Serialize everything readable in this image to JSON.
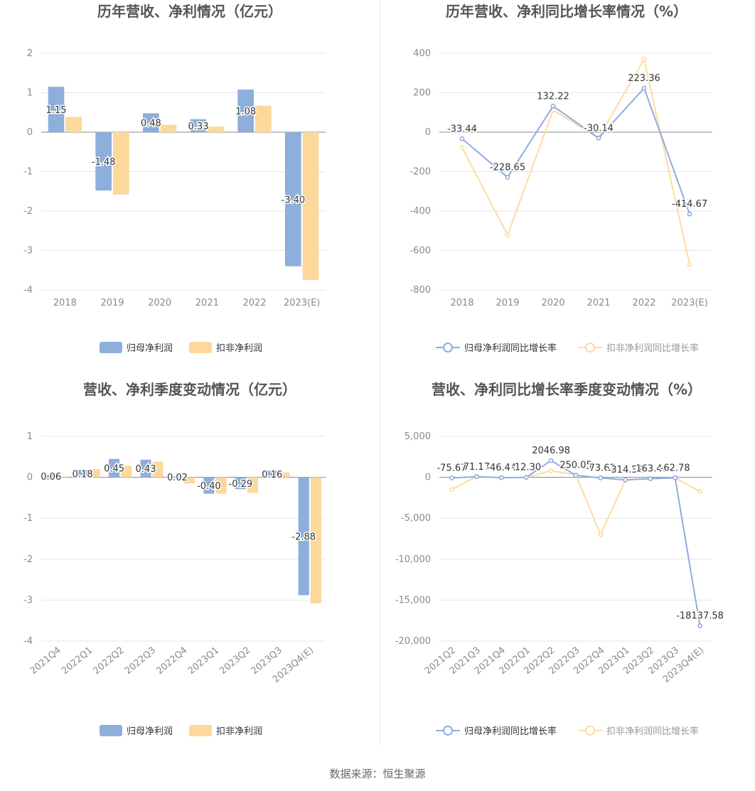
{
  "footer": {
    "source": "数据来源：恒生聚源"
  },
  "colors": {
    "blue": "#8eaedc",
    "orange": "#fdd89b",
    "blue_line": "#8eaedc",
    "orange_line": "#fddca0",
    "grid": "#e6e6e6",
    "axis": "#999999"
  },
  "chart_data": [
    {
      "type": "bar",
      "title": "历年营收、净利情况（亿元）",
      "categories": [
        "2018",
        "2019",
        "2020",
        "2021",
        "2022",
        "2023(E)"
      ],
      "series": [
        {
          "name": "归母净利润",
          "values": [
            1.15,
            -1.48,
            0.48,
            0.33,
            1.08,
            -3.4
          ],
          "labels": [
            "1.15",
            "-1.48",
            "0.48",
            "0.33",
            "1.08",
            "-3.40"
          ]
        },
        {
          "name": "扣非净利润",
          "values": [
            0.39,
            -1.58,
            0.19,
            0.14,
            0.67,
            -3.75
          ]
        }
      ],
      "ylim": [
        -4,
        2
      ],
      "yticks": [
        2,
        1,
        0,
        -1,
        -2,
        -3,
        -4
      ],
      "ytick_labels": [
        "2",
        "1",
        "0",
        "-1",
        "-2",
        "-3",
        "-4"
      ],
      "grid": true,
      "legend": "bottom"
    },
    {
      "type": "line",
      "title": "历年营收、净利同比增长率情况（%）",
      "categories": [
        "2018",
        "2019",
        "2020",
        "2021",
        "2022",
        "2023(E)"
      ],
      "series": [
        {
          "name": "归母净利润同比增长率",
          "values": [
            -33.44,
            -228.65,
            132.22,
            -30.14,
            223.36,
            -414.67
          ],
          "labels": [
            "-33.44",
            "-228.65",
            "132.22",
            "-30.14",
            "223.36",
            "-414.67"
          ]
        },
        {
          "name": "扣非净利润同比增长率",
          "values": [
            -78,
            -522,
            112,
            -28,
            370,
            -670
          ]
        }
      ],
      "ylim": [
        -800,
        400
      ],
      "yticks": [
        400,
        200,
        0,
        -200,
        -400,
        -600,
        -800
      ],
      "ytick_labels": [
        "400",
        "200",
        "0",
        "-200",
        "-400",
        "-600",
        "-800"
      ],
      "grid": true,
      "legend": "bottom"
    },
    {
      "type": "bar",
      "title": "营收、净利季度变动情况（亿元）",
      "categories": [
        "2021Q4",
        "2022Q1",
        "2022Q2",
        "2022Q3",
        "2022Q4",
        "2023Q1",
        "2023Q2",
        "2023Q3",
        "2023Q4(E)"
      ],
      "series": [
        {
          "name": "归母净利润",
          "values": [
            0.06,
            0.18,
            0.45,
            0.43,
            0.02,
            -0.4,
            -0.29,
            0.16,
            -2.88
          ],
          "labels": [
            "0.06",
            "0.18",
            "0.45",
            "0.43",
            "0.02",
            "-0.40",
            "-0.29",
            "0.16",
            "-2.88"
          ]
        },
        {
          "name": "扣非净利润",
          "values": [
            0.02,
            0.2,
            0.28,
            0.38,
            -0.15,
            -0.4,
            -0.38,
            0.12,
            -3.08
          ]
        }
      ],
      "ylim": [
        -4,
        1
      ],
      "yticks": [
        1,
        0,
        -1,
        -2,
        -3,
        -4
      ],
      "ytick_labels": [
        "1",
        "0",
        "-1",
        "-2",
        "-3",
        "-4"
      ],
      "grid": true,
      "legend": "bottom"
    },
    {
      "type": "line",
      "title": "营收、净利同比增长率季度变动情况（%）",
      "categories": [
        "2021Q2",
        "2021Q3",
        "2021Q4",
        "2022Q1",
        "2022Q2",
        "2022Q3",
        "2022Q4",
        "2023Q1",
        "2023Q2",
        "2023Q3",
        "2023Q4(E)"
      ],
      "series": [
        {
          "name": "归母净利润同比增长率",
          "values": [
            -75.67,
            71.17,
            -46.44,
            -12.3,
            2046.98,
            250.05,
            -73.62,
            -314.52,
            -163.46,
            -62.78,
            -18137.58
          ],
          "labels": [
            "-75.67",
            "71.17",
            "-46.44",
            "-12.30",
            "2046.98",
            "250.05",
            "-73.62",
            "-314.52",
            "-163.46",
            "-62.78",
            "-18137.58"
          ]
        },
        {
          "name": "扣非净利润同比增长率",
          "values": [
            -1500,
            100,
            -50,
            -20,
            800,
            300,
            -7000,
            -300,
            -200,
            -60,
            -1750
          ]
        }
      ],
      "ylim": [
        -20000,
        5000
      ],
      "yticks": [
        5000,
        0,
        -5000,
        -10000,
        -15000,
        -20000
      ],
      "ytick_labels": [
        "5,000",
        "0",
        "-5,000",
        "-10,000",
        "-15,000",
        "-20,000"
      ],
      "grid": true,
      "legend": "bottom"
    }
  ]
}
